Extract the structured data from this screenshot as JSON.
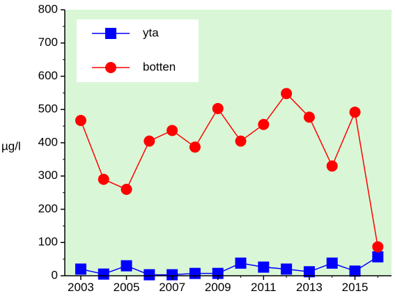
{
  "chart_data": {
    "type": "line",
    "title": "",
    "xlabel": "",
    "ylabel": "µg/l",
    "xlim": [
      2002.3,
      2016.6
    ],
    "ylim": [
      0,
      800
    ],
    "x_ticks": [
      2003,
      2005,
      2007,
      2009,
      2011,
      2013,
      2015
    ],
    "x_tick_labels": [
      "2003",
      "2005",
      "2007",
      "2009",
      "2011",
      "2013",
      "2015"
    ],
    "y_ticks": [
      0,
      100,
      200,
      300,
      400,
      500,
      600,
      700,
      800
    ],
    "y_tick_labels": [
      "0",
      "100",
      "200",
      "300",
      "400",
      "500",
      "600",
      "700",
      "800"
    ],
    "grid": false,
    "legend_position": "top-left",
    "background_color": "#d9f7d6",
    "x": [
      2003,
      2004,
      2005,
      2006,
      2007,
      2008,
      2009,
      2010,
      2011,
      2012,
      2013,
      2014,
      2015,
      2016
    ],
    "series": [
      {
        "name": "yta",
        "color": "#0000ff",
        "marker": "square",
        "values": [
          20,
          5,
          30,
          3,
          3,
          7,
          7,
          38,
          26,
          20,
          12,
          38,
          14,
          57
        ]
      },
      {
        "name": "botten",
        "color": "#ff0000",
        "marker": "circle",
        "values": [
          467,
          290,
          260,
          405,
          437,
          387,
          503,
          405,
          455,
          548,
          477,
          330,
          492,
          87
        ]
      }
    ]
  }
}
